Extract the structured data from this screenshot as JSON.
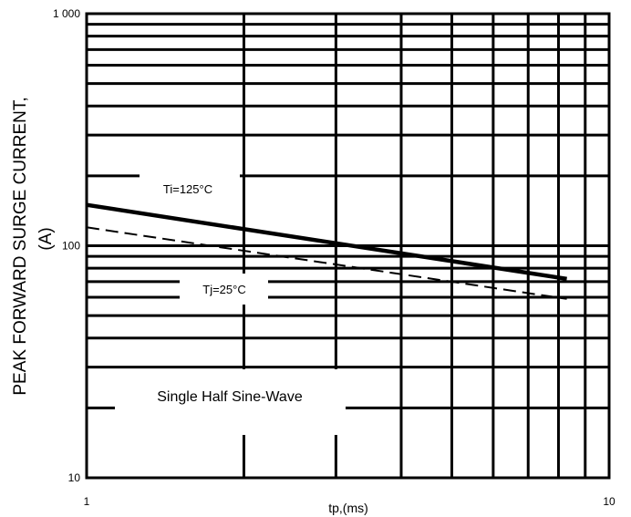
{
  "chart_data": {
    "type": "line",
    "title": "",
    "xlabel": "tp,(ms)",
    "ylabel_line1": "PEAK FORWARD SURGE CURRENT,",
    "ylabel_line2": "(A)",
    "x_scale": "log",
    "y_scale": "log",
    "xlim": [
      1,
      10
    ],
    "ylim": [
      10,
      1000
    ],
    "x_tick_labels": [
      "1",
      "10"
    ],
    "y_tick_labels": [
      "10",
      "100",
      "1 000"
    ],
    "grid": true,
    "series": [
      {
        "name": "Ti=125°C",
        "style": "solid",
        "color": "#000000",
        "x": [
          1,
          8.3
        ],
        "y": [
          150,
          72
        ]
      },
      {
        "name": "Tj=25°C",
        "style": "dashed",
        "color": "#000000",
        "x": [
          1,
          8.3
        ],
        "y": [
          120,
          59
        ]
      }
    ],
    "annotations": [
      {
        "text": "Single Half Sine-Wave"
      }
    ]
  }
}
